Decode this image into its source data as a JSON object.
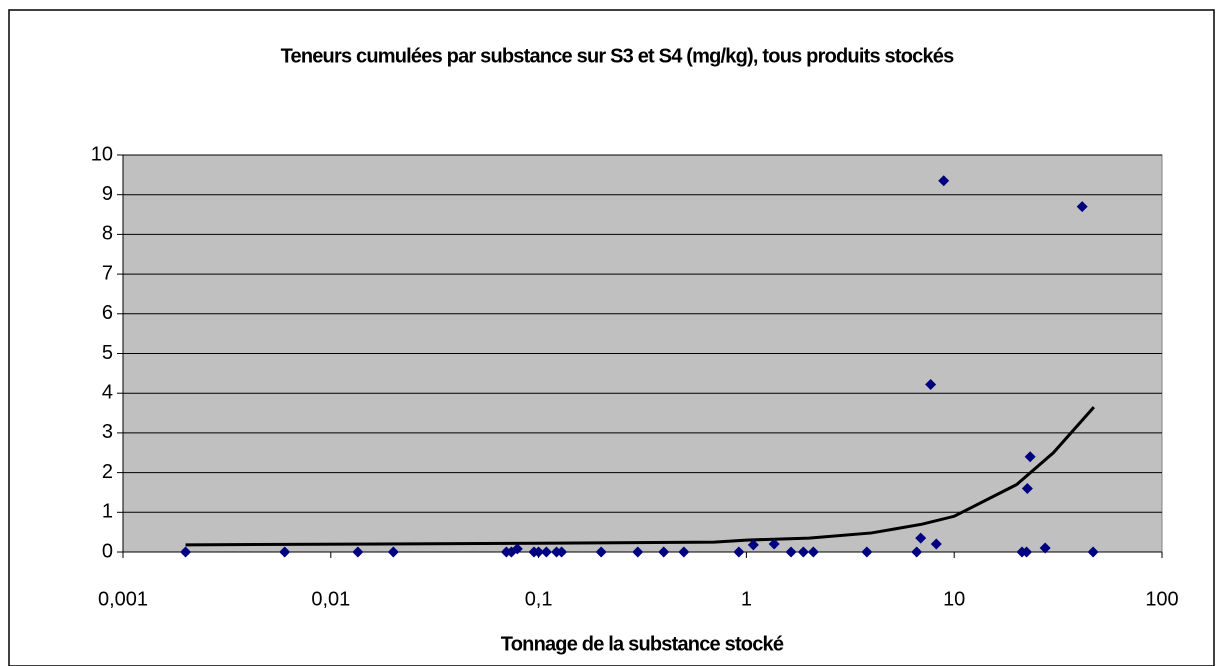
{
  "chart_data": {
    "type": "scatter",
    "title": "Teneurs cumulées par substance sur S3 et S4 (mg/kg), tous produits stockés",
    "x_label": "Tonnage de la substance stocké",
    "xscale": "log",
    "xlim": [
      0.001,
      100
    ],
    "xticks": [
      {
        "value": 0.001,
        "label": "0,001"
      },
      {
        "value": 0.01,
        "label": "0,01"
      },
      {
        "value": 0.1,
        "label": "0,1"
      },
      1,
      10,
      100
    ],
    "ylim": [
      0,
      10
    ],
    "yticks": [
      0,
      1,
      2,
      3,
      4,
      5,
      6,
      7,
      8,
      9,
      10
    ],
    "grid": true,
    "background": "#c0c0c0",
    "series": [
      {
        "color": "#000080",
        "x": [
          0.002,
          0.006,
          0.0135,
          0.02,
          0.07,
          0.074,
          0.079,
          0.095,
          0.1,
          0.109,
          0.122,
          0.129,
          0.2,
          0.3,
          0.4,
          0.5,
          0.92,
          1.08,
          1.36,
          1.64,
          1.88,
          2.1,
          3.8,
          6.6,
          6.9,
          7.7,
          8.2,
          8.9,
          21.2,
          22.3,
          22.5,
          23.2,
          27.4,
          41.3,
          46.6
        ],
        "values": [
          0,
          0,
          0,
          0,
          0,
          0,
          0.08,
          0,
          0,
          0,
          0,
          0,
          0,
          0,
          0,
          0,
          0,
          0.18,
          0.2,
          0,
          0,
          0,
          0,
          0,
          0.35,
          4.22,
          0.2,
          9.35,
          0,
          0,
          1.6,
          2.4,
          0.1,
          8.7,
          0
        ]
      }
    ],
    "trendline": {
      "color": "#000000",
      "x": [
        0.002,
        0.1,
        0.7,
        1,
        2,
        4,
        7,
        10,
        20,
        30,
        47
      ],
      "values": [
        0.18,
        0.22,
        0.25,
        0.3,
        0.35,
        0.48,
        0.7,
        0.9,
        1.7,
        2.5,
        3.65
      ]
    }
  }
}
